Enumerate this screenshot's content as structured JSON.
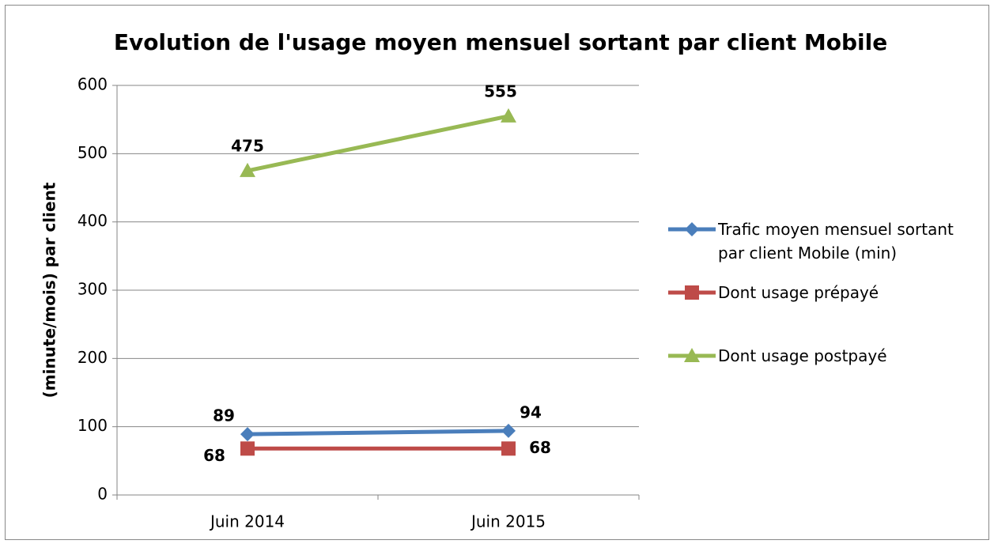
{
  "chart_data": {
    "type": "line",
    "title": "Evolution de l'usage moyen mensuel sortant par client Mobile",
    "y_label": "(minute/mois) par client",
    "categories": [
      "Juin 2014",
      "Juin 2015"
    ],
    "series": [
      {
        "name": "Trafic moyen mensuel sortant par client Mobile (min)",
        "color": "#4a7ebb",
        "marker": "diamond",
        "values": [
          89,
          94
        ]
      },
      {
        "name": "Dont usage prépayé",
        "color": "#be4b48",
        "marker": "square",
        "values": [
          68,
          68
        ]
      },
      {
        "name": "Dont usage postpayé",
        "color": "#98b954",
        "marker": "triangle",
        "values": [
          475,
          555
        ]
      }
    ],
    "ylim": [
      0,
      600
    ],
    "yticks": [
      0,
      100,
      200,
      300,
      400,
      500,
      600
    ],
    "grid": true,
    "legend": "right",
    "data_labels": true
  }
}
